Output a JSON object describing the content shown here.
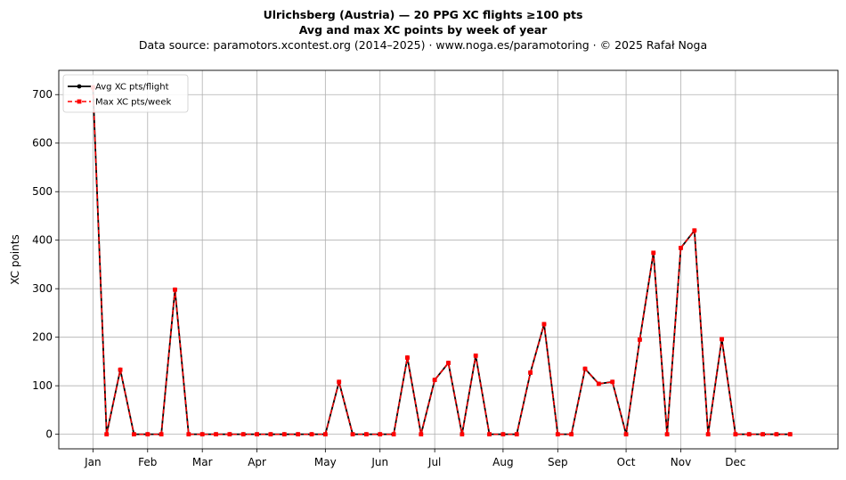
{
  "chart_data": {
    "type": "line",
    "title_line1": "Ulrichsberg (Austria)  —  20 PPG XC flights ≥100 pts",
    "title_line2": "Avg and max XC points by week of year",
    "subtitle": "Data source: paramotors.xcontest.org (2014–2025)  ·  www.noga.es/paramotoring  ·  © 2025 Rafał Noga",
    "xlabel": "",
    "ylabel": "XC points",
    "ylim": [
      -30,
      750
    ],
    "xlim": [
      -2.5,
      54.5
    ],
    "yticks": [
      0,
      100,
      200,
      300,
      400,
      500,
      600,
      700
    ],
    "xtick_labels": [
      "Jan",
      "Feb",
      "Mar",
      "Apr",
      "May",
      "Jun",
      "Jul",
      "Aug",
      "Sep",
      "Oct",
      "Nov",
      "Dec"
    ],
    "xtick_weeks": [
      0,
      4,
      8,
      12,
      17,
      21,
      25,
      30,
      34,
      39,
      43,
      47
    ],
    "grid": true,
    "legend_position": "top-left",
    "x": [
      0,
      1,
      2,
      3,
      4,
      5,
      6,
      7,
      8,
      9,
      10,
      11,
      12,
      13,
      14,
      15,
      16,
      17,
      18,
      19,
      20,
      21,
      22,
      23,
      24,
      25,
      26,
      27,
      28,
      29,
      30,
      31,
      32,
      33,
      34,
      35,
      36,
      37,
      38,
      39,
      40,
      41,
      42,
      43,
      44,
      45,
      46,
      47,
      48,
      49,
      50,
      51
    ],
    "series": [
      {
        "name": "Avg XC pts/flight",
        "color": "#000000",
        "style": "solid",
        "marker": "circle",
        "values": [
          715,
          0,
          133,
          0,
          0,
          0,
          298,
          0,
          0,
          0,
          0,
          0,
          0,
          0,
          0,
          0,
          0,
          0,
          108,
          0,
          0,
          0,
          0,
          158,
          0,
          112,
          147,
          0,
          162,
          0,
          0,
          0,
          127,
          227,
          0,
          0,
          135,
          104,
          108,
          0,
          195,
          374,
          0,
          384,
          420,
          0,
          196,
          0,
          0,
          0,
          0,
          0
        ]
      },
      {
        "name": "Max XC pts/week",
        "color": "#ff0000",
        "style": "dashed",
        "marker": "square",
        "values": [
          715,
          0,
          133,
          0,
          0,
          0,
          298,
          0,
          0,
          0,
          0,
          0,
          0,
          0,
          0,
          0,
          0,
          0,
          108,
          0,
          0,
          0,
          0,
          158,
          0,
          112,
          147,
          0,
          162,
          0,
          0,
          0,
          127,
          227,
          0,
          0,
          135,
          104,
          108,
          0,
          195,
          374,
          0,
          384,
          420,
          0,
          196,
          0,
          0,
          0,
          0,
          0
        ]
      }
    ]
  }
}
